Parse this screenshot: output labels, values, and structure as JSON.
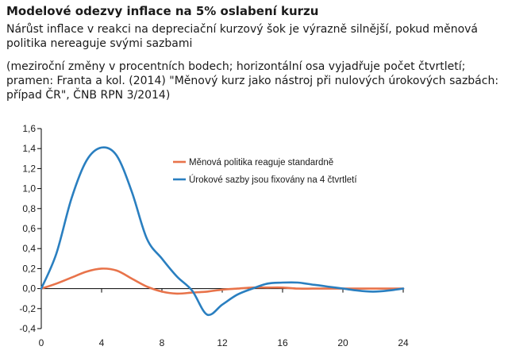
{
  "header": {
    "title": "Modelové odezvy inflace na 5% oslabení kurzu",
    "subtitle": "Nárůst inflace v reakci na depreciační kurzový šok je výrazně silnější, pokud měnová politika nereaguje svými sazbami",
    "note": "(meziroční změny v procentních bodech; horizontální osa vyjadřuje počet čtvrtletí; pramen: Franta a kol. (2014) \"Měnový kurz jako nástroj při nulových úrokových sazbách: případ ČR\", ČNB RPN 3/2014)"
  },
  "chart_data": {
    "type": "line",
    "x": [
      0,
      1,
      2,
      3,
      4,
      5,
      6,
      7,
      8,
      9,
      10,
      11,
      12,
      13,
      14,
      15,
      16,
      17,
      18,
      19,
      20,
      21,
      22,
      23,
      24
    ],
    "xticks": [
      0,
      4,
      8,
      12,
      16,
      20,
      24
    ],
    "xtick_labels": [
      "0",
      "4",
      "8",
      "12",
      "16",
      "20",
      "24"
    ],
    "ylim": [
      -0.4,
      1.6
    ],
    "yticks": [
      -0.4,
      -0.2,
      0.0,
      0.2,
      0.4,
      0.6,
      0.8,
      1.0,
      1.2,
      1.4,
      1.6
    ],
    "ytick_labels": [
      "-0,4",
      "-0,2",
      "0,0",
      "0,2",
      "0,4",
      "0,6",
      "0,8",
      "1,0",
      "1,2",
      "1,4",
      "1,6"
    ],
    "grid": false,
    "legend_position": "right",
    "series": [
      {
        "name": "Měnová politika reaguje standardně",
        "color": "#e8734a",
        "values": [
          0.0,
          0.05,
          0.11,
          0.17,
          0.2,
          0.18,
          0.1,
          0.02,
          -0.03,
          -0.05,
          -0.04,
          -0.03,
          -0.01,
          0.0,
          0.01,
          0.01,
          0.01,
          0.0,
          0.0,
          0.0,
          0.0,
          0.0,
          0.0,
          0.0,
          0.0
        ]
      },
      {
        "name": "Úrokové sazby jsou fixovány na 4 čtvrtletí",
        "color": "#2a7fc0",
        "values": [
          0.0,
          0.35,
          0.9,
          1.28,
          1.41,
          1.33,
          0.97,
          0.5,
          0.3,
          0.12,
          -0.02,
          -0.26,
          -0.16,
          -0.06,
          0.0,
          0.05,
          0.06,
          0.06,
          0.04,
          0.02,
          0.0,
          -0.02,
          -0.03,
          -0.02,
          0.0
        ]
      }
    ]
  }
}
